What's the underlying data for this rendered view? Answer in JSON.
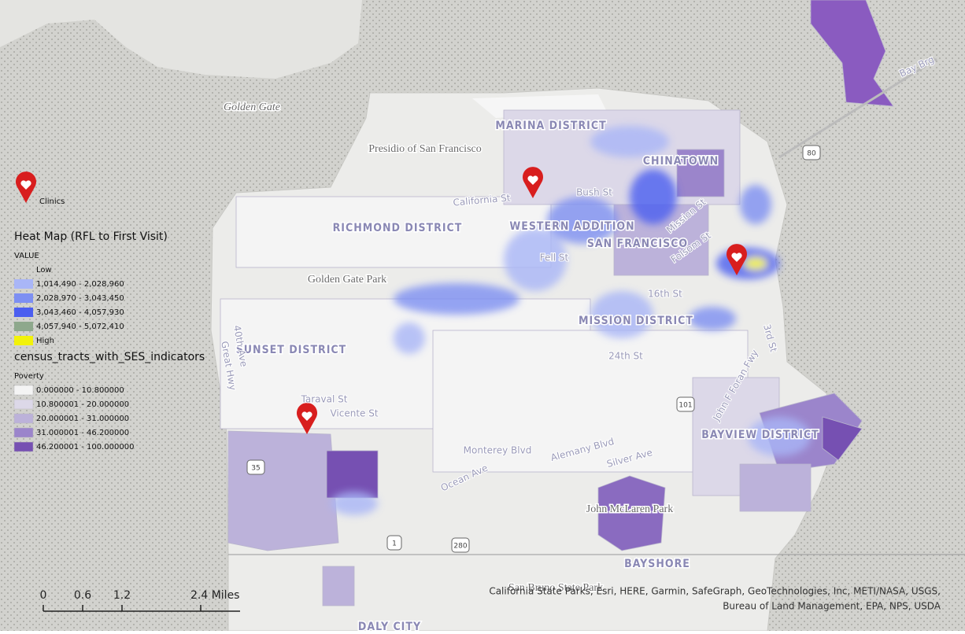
{
  "legend": {
    "clinics": "Clinics",
    "heat_title": "Heat Map (RFL to First Visit)",
    "heat_field": "VALUE",
    "heat_low": "Low",
    "heat_classes": [
      {
        "label": "1,014,490 - 2,028,960",
        "color": "#a9b6f7"
      },
      {
        "label": "2,028,970 - 3,043,450",
        "color": "#7d8ff2"
      },
      {
        "label": "3,043,460 - 4,057,930",
        "color": "#4b5ef0"
      },
      {
        "label": "4,057,940 - 5,072,410",
        "color": "#8ea88c"
      },
      {
        "label": "High",
        "color": "#f2f20a"
      }
    ],
    "tracts_title": "census_tracts_with_SES_indicators",
    "tracts_field": "Poverty",
    "tracts_classes": [
      {
        "label": "0.000000 - 10.800000",
        "color": "#f4f4f4"
      },
      {
        "label": "10.800001 - 20.000000",
        "color": "#dcd8e8"
      },
      {
        "label": "20.000001 - 31.000000",
        "color": "#bcb2da"
      },
      {
        "label": "31.000001 - 46.200000",
        "color": "#9b85cb"
      },
      {
        "label": "46.200001 - 100.000000",
        "color": "#7650b2"
      }
    ]
  },
  "labels": {
    "golden_gate": "Golden Gate",
    "presidio": "Presidio of San Francisco",
    "marina": "MARINA DISTRICT",
    "chinatown": "CHINATOWN",
    "richmond": "RICHMOND DISTRICT",
    "western_addition": "WESTERN ADDITION",
    "san_francisco": "SAN FRANCISCO",
    "golden_gate_park": "Golden Gate Park",
    "sunset": "SUNSET DISTRICT",
    "mission": "MISSION DISTRICT",
    "bayview": "BAYVIEW DISTRICT",
    "mclaren": "John McLaren Park",
    "bayshore": "BAYSHORE",
    "san_bruno": "San Bruno State Park",
    "daly_city": "DALY CITY",
    "bay_bridge": "Bay Brg",
    "california_st": "California St",
    "bush_st": "Bush St",
    "fell_st": "Fell St",
    "mission_st": "Mission St",
    "folsom_st": "Folsom St",
    "st16": "16th St",
    "st24": "24th St",
    "taraval": "Taraval St",
    "vicente": "Vicente St",
    "monterey": "Monterey Blvd",
    "ocean": "Ocean Ave",
    "alemany": "Alemany Blvd",
    "silver": "Silver Ave",
    "third": "3rd St",
    "foran": "John F Foran Fwy",
    "ave40": "40th Ave",
    "great_hwy": "Great Hwy",
    "i80": "80",
    "us101": "101",
    "i280": "280",
    "ca35": "35",
    "ca1": "1"
  },
  "scale": {
    "lim": [
      0,
      2.4
    ],
    "ticks": [
      0,
      0.6,
      1.2,
      {
        "value": 2.4,
        "label": "2.4 Miles"
      }
    ]
  },
  "attribution": [
    "California State Parks, Esri, HERE, Garmin, SafeGraph, GeoTechnologies, Inc, METI/NASA, USGS,",
    "Bureau of Land Management, EPA, NPS, USDA"
  ]
}
